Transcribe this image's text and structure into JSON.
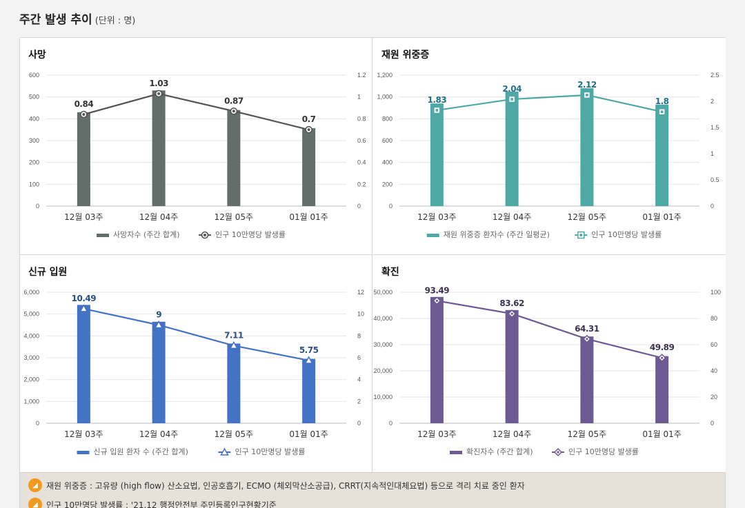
{
  "header": {
    "title": "주간 발생 추이",
    "unit": "(단위 : 명)"
  },
  "colors": {
    "death": "#636e6b",
    "severe": "#4ea8a6",
    "admission": "#4472c4",
    "confirmed": "#6e5a93",
    "rate_line": "#555555",
    "note_icon": "#f29a1f"
  },
  "chart_data": [
    {
      "type": "bar",
      "title": "사망",
      "categories": [
        "12월 03주",
        "12월 04주",
        "12월 05주",
        "01월 01주"
      ],
      "series": [
        {
          "name": "사망자수 (주간 합계)",
          "type": "bar",
          "axis": "left",
          "values": [
            430,
            530,
            440,
            357
          ]
        },
        {
          "name": "인구 10만명당 발생률",
          "type": "line",
          "axis": "right",
          "values": [
            0.84,
            1.03,
            0.87,
            0.7
          ],
          "labels": [
            "0.84",
            "1.03",
            "0.87",
            "0.7"
          ]
        }
      ],
      "ylim": [
        0,
        600
      ],
      "yticks": [
        "0",
        "100",
        "200",
        "300",
        "400",
        "500",
        "600"
      ],
      "y2lim": [
        0,
        1.2
      ],
      "y2ticks": [
        "0",
        "0.2",
        "0.4",
        "0.6",
        "0.8",
        "1",
        "1.2"
      ],
      "legend": "bottom"
    },
    {
      "type": "bar",
      "title": "재원 위중증",
      "categories": [
        "12월 03주",
        "12월 04주",
        "12월 05주",
        "01월 01주"
      ],
      "series": [
        {
          "name": "재원 위중증 환자수 (주간 일평균)",
          "type": "bar",
          "axis": "left",
          "values": [
            940,
            1050,
            1080,
            930
          ]
        },
        {
          "name": "인구 10만명당 발생률",
          "type": "line",
          "axis": "right",
          "values": [
            1.83,
            2.04,
            2.12,
            1.8
          ],
          "labels": [
            "1.83",
            "2.04",
            "2.12",
            "1.8"
          ]
        }
      ],
      "ylim": [
        0,
        1200
      ],
      "yticks": [
        "0",
        "200",
        "400",
        "600",
        "800",
        "1,000",
        "1,200"
      ],
      "y2lim": [
        0,
        2.5
      ],
      "y2ticks": [
        "0",
        "0.5",
        "1",
        "1.5",
        "2",
        "2.5"
      ],
      "legend": "bottom"
    },
    {
      "type": "bar",
      "title": "신규 입원",
      "categories": [
        "12월 03주",
        "12월 04주",
        "12월 05주",
        "01월 01주"
      ],
      "series": [
        {
          "name": "신규 입원 환자 수 (주간 합계)",
          "type": "bar",
          "axis": "left",
          "values": [
            5420,
            4650,
            3650,
            2950
          ]
        },
        {
          "name": "인구 10만명당 발생률",
          "type": "line",
          "axis": "right",
          "values": [
            10.49,
            9,
            7.11,
            5.75
          ],
          "labels": [
            "10.49",
            "9",
            "7.11",
            "5.75"
          ]
        }
      ],
      "ylim": [
        0,
        6000
      ],
      "yticks": [
        "0",
        "1,000",
        "2,000",
        "3,000",
        "4,000",
        "5,000",
        "6,000"
      ],
      "y2lim": [
        0,
        12
      ],
      "y2ticks": [
        "0",
        "2",
        "4",
        "6",
        "8",
        "10",
        "12"
      ],
      "legend": "bottom"
    },
    {
      "type": "bar",
      "title": "확진",
      "categories": [
        "12월 03주",
        "12월 04주",
        "12월 05주",
        "01월 01주"
      ],
      "series": [
        {
          "name": "확진자수 (주간 합계)",
          "type": "bar",
          "axis": "left",
          "values": [
            48200,
            43200,
            33100,
            25600
          ]
        },
        {
          "name": "인구 10만명당 발생률",
          "type": "line",
          "axis": "right",
          "values": [
            93.49,
            83.62,
            64.31,
            49.89
          ],
          "labels": [
            "93.49",
            "83.62",
            "64.31",
            "49.89"
          ]
        }
      ],
      "ylim": [
        0,
        50000
      ],
      "yticks": [
        "0",
        "10,000",
        "20,000",
        "30,000",
        "40,000",
        "50,000"
      ],
      "y2lim": [
        0,
        100
      ],
      "y2ticks": [
        "0",
        "20",
        "40",
        "60",
        "80",
        "100"
      ],
      "legend": "bottom"
    }
  ],
  "notes": [
    {
      "icon": "speaker-icon",
      "text": "재원 위중증 : 고유량 (high flow) 산소요법, 인공호흡기, ECMO (체외막산소공급), CRRT(지속적인대체요법) 등으로 격리 치료 중인 환자"
    },
    {
      "icon": "speaker-icon",
      "text": "인구 10만명당 발생률 : '21.12 행정안전부 주민등록인구현황기준"
    }
  ]
}
